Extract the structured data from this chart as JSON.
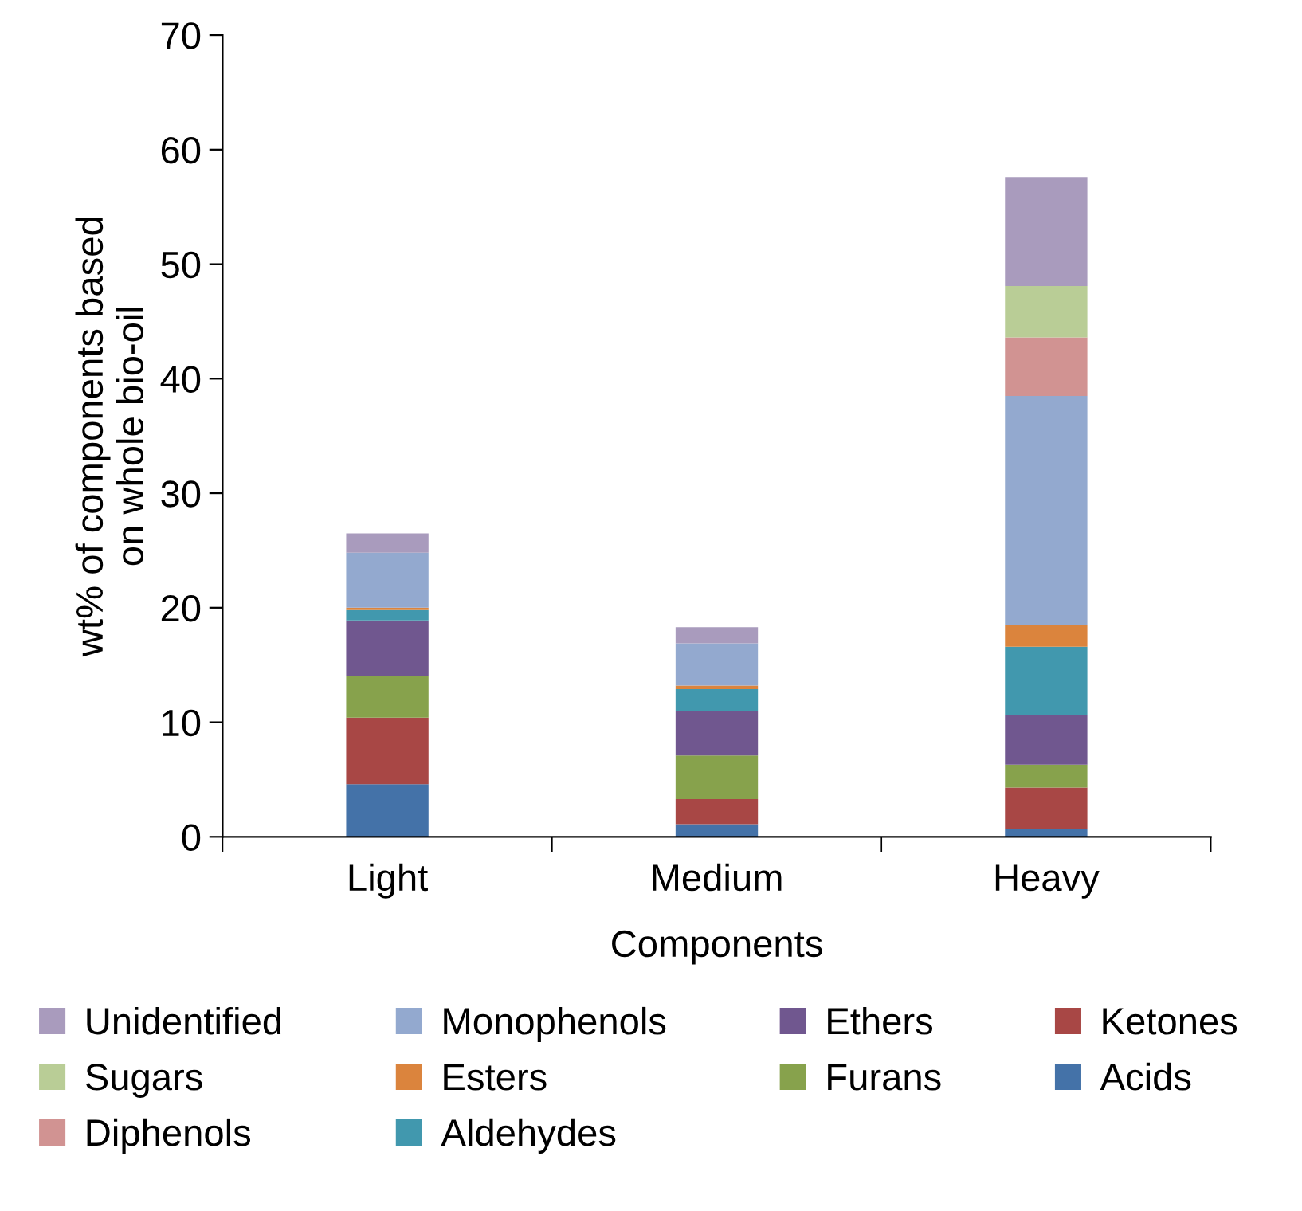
{
  "chart_data": {
    "type": "bar",
    "stacked": true,
    "xlabel": "Components",
    "ylabel": "wt% of components based\non whole bio-oil",
    "categories": [
      "Light",
      "Medium",
      "Heavy"
    ],
    "series": [
      {
        "name": "Acids",
        "color": "#4472a8",
        "values": [
          4.6,
          1.1,
          0.7
        ]
      },
      {
        "name": "Ketones",
        "color": "#a84745",
        "values": [
          5.8,
          2.2,
          3.6
        ]
      },
      {
        "name": "Furans",
        "color": "#87a24c",
        "values": [
          3.6,
          3.8,
          2.0
        ]
      },
      {
        "name": "Ethers",
        "color": "#70578f",
        "values": [
          4.9,
          3.9,
          4.3
        ]
      },
      {
        "name": "Aldehydes",
        "color": "#4198ae",
        "values": [
          0.9,
          1.9,
          6.0
        ]
      },
      {
        "name": "Esters",
        "color": "#db843d",
        "values": [
          0.2,
          0.3,
          1.9
        ]
      },
      {
        "name": "Monophenols",
        "color": "#93a9cf",
        "values": [
          4.8,
          3.7,
          20.0
        ]
      },
      {
        "name": "Diphenols",
        "color": "#d19392",
        "values": [
          0,
          0,
          5.1
        ]
      },
      {
        "name": "Sugars",
        "color": "#b9cd96",
        "values": [
          0,
          0,
          4.5
        ]
      },
      {
        "name": "Unidentified",
        "color": "#a99bbd",
        "values": [
          1.7,
          1.4,
          9.5
        ]
      }
    ],
    "ylim": [
      0,
      70
    ],
    "yticks": [
      0,
      10,
      20,
      30,
      40,
      50,
      60,
      70
    ],
    "grid": false,
    "legend": "bottom"
  }
}
